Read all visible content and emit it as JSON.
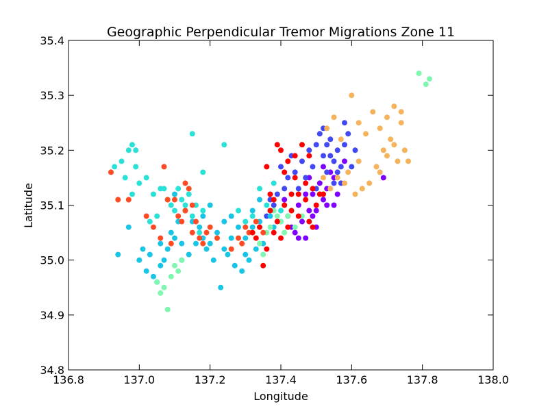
{
  "colors": {
    "purple": "#7f00ff",
    "blue": "#4248f4",
    "cyan": "#19c5e6",
    "teal": "#2ae1d8",
    "green": "#7ff7b0",
    "orange": "#f7b25c",
    "red_orange": "#fe4b23",
    "red": "#ff0000"
  },
  "chart_data": {
    "type": "scatter",
    "title": "Geographic Perpendicular Tremor Migrations Zone 11",
    "xlabel": "Longitude",
    "ylabel": "Latitude",
    "xlim": [
      136.8,
      138.0
    ],
    "ylim": [
      34.8,
      35.4
    ],
    "xticks": [
      "136.8",
      "137.0",
      "137.2",
      "137.4",
      "137.6",
      "137.8",
      "138.0"
    ],
    "yticks": [
      "34.8",
      "34.9",
      "35.0",
      "35.1",
      "35.2",
      "35.3",
      "35.4"
    ],
    "grid": false,
    "legend": "none",
    "series": [
      {
        "color": "purple",
        "points": [
          [
            137.45,
            35.1
          ],
          [
            137.47,
            35.12
          ],
          [
            137.49,
            35.08
          ],
          [
            137.5,
            35.06
          ],
          [
            137.52,
            35.11
          ],
          [
            137.53,
            35.13
          ],
          [
            137.55,
            35.15
          ],
          [
            137.48,
            35.09
          ],
          [
            137.46,
            35.07
          ],
          [
            137.44,
            35.05
          ],
          [
            137.42,
            35.08
          ],
          [
            137.51,
            35.14
          ],
          [
            137.54,
            35.16
          ],
          [
            137.56,
            35.12
          ],
          [
            137.58,
            35.18
          ],
          [
            137.43,
            35.06
          ],
          [
            137.47,
            35.04
          ],
          [
            137.49,
            35.12
          ],
          [
            137.52,
            35.17
          ],
          [
            137.69,
            35.15
          ],
          [
            137.5,
            35.09
          ],
          [
            137.45,
            35.04
          ],
          [
            137.53,
            35.1
          ],
          [
            137.41,
            35.11
          ],
          [
            137.48,
            35.15
          ],
          [
            137.55,
            35.1
          ]
        ]
      },
      {
        "color": "blue",
        "points": [
          [
            137.5,
            35.21
          ],
          [
            137.52,
            35.19
          ],
          [
            137.54,
            35.22
          ],
          [
            137.56,
            35.2
          ],
          [
            137.53,
            35.16
          ],
          [
            137.55,
            35.14
          ],
          [
            137.57,
            35.17
          ],
          [
            137.59,
            35.23
          ],
          [
            137.61,
            35.2
          ],
          [
            137.58,
            35.25
          ],
          [
            137.52,
            35.24
          ],
          [
            137.46,
            35.18
          ],
          [
            137.44,
            35.16
          ],
          [
            137.42,
            35.15
          ],
          [
            137.4,
            35.17
          ],
          [
            137.38,
            35.1
          ],
          [
            137.36,
            35.08
          ],
          [
            137.48,
            35.2
          ],
          [
            137.51,
            35.23
          ],
          [
            137.55,
            35.18
          ],
          [
            137.57,
            35.14
          ],
          [
            137.54,
            35.19
          ],
          [
            137.49,
            35.17
          ],
          [
            137.47,
            35.15
          ],
          [
            137.43,
            35.19
          ],
          [
            137.41,
            35.13
          ],
          [
            137.39,
            35.12
          ],
          [
            137.53,
            35.21
          ],
          [
            137.56,
            35.16
          ],
          [
            137.58,
            35.21
          ],
          [
            137.6,
            35.17
          ],
          [
            137.5,
            35.13
          ],
          [
            137.45,
            35.13
          ],
          [
            137.37,
            35.11
          ]
        ]
      },
      {
        "color": "cyan",
        "points": [
          [
            137.0,
            35.0
          ],
          [
            137.02,
            34.98
          ],
          [
            137.04,
            34.97
          ],
          [
            137.06,
            34.99
          ],
          [
            137.08,
            35.02
          ],
          [
            137.1,
            35.04
          ],
          [
            137.12,
            35.03
          ],
          [
            137.14,
            35.01
          ],
          [
            137.16,
            35.03
          ],
          [
            137.18,
            35.04
          ],
          [
            137.2,
            35.03
          ],
          [
            137.22,
            35.05
          ],
          [
            137.24,
            35.02
          ],
          [
            137.26,
            35.04
          ],
          [
            137.28,
            35.06
          ],
          [
            137.3,
            35.04
          ],
          [
            137.32,
            35.06
          ],
          [
            137.34,
            35.07
          ],
          [
            137.36,
            35.05
          ],
          [
            137.38,
            35.06
          ],
          [
            137.4,
            35.07
          ],
          [
            137.03,
            35.01
          ],
          [
            137.05,
            34.96
          ],
          [
            137.07,
            35.0
          ],
          [
            137.09,
            35.05
          ],
          [
            137.11,
            35.07
          ],
          [
            137.13,
            35.09
          ],
          [
            137.15,
            35.07
          ],
          [
            137.17,
            35.06
          ],
          [
            137.19,
            35.02
          ],
          [
            137.21,
            35.0
          ],
          [
            137.23,
            34.95
          ],
          [
            137.25,
            35.01
          ],
          [
            137.27,
            34.99
          ],
          [
            137.29,
            34.98
          ],
          [
            137.31,
            35.0
          ],
          [
            137.33,
            35.02
          ],
          [
            137.35,
            35.03
          ],
          [
            137.37,
            35.08
          ],
          [
            137.01,
            35.02
          ],
          [
            137.06,
            35.03
          ],
          [
            137.12,
            35.0
          ],
          [
            137.18,
            35.08
          ],
          [
            137.24,
            35.07
          ],
          [
            137.3,
            35.01
          ],
          [
            136.94,
            35.01
          ],
          [
            136.97,
            35.06
          ],
          [
            137.26,
            35.08
          ],
          [
            137.2,
            35.1
          ],
          [
            137.32,
            35.09
          ],
          [
            137.34,
            35.11
          ],
          [
            137.1,
            35.12
          ]
        ]
      },
      {
        "color": "teal",
        "points": [
          [
            136.93,
            35.17
          ],
          [
            136.95,
            35.18
          ],
          [
            136.97,
            35.2
          ],
          [
            136.98,
            35.21
          ],
          [
            136.99,
            35.2
          ],
          [
            136.96,
            35.15
          ],
          [
            136.98,
            35.12
          ],
          [
            137.0,
            35.14
          ],
          [
            137.02,
            35.15
          ],
          [
            137.04,
            35.12
          ],
          [
            137.06,
            35.13
          ],
          [
            137.08,
            35.11
          ],
          [
            137.1,
            35.09
          ],
          [
            137.12,
            35.11
          ],
          [
            137.14,
            35.12
          ],
          [
            137.16,
            35.1
          ],
          [
            137.18,
            35.09
          ],
          [
            137.15,
            35.23
          ],
          [
            137.18,
            35.16
          ],
          [
            137.24,
            35.21
          ],
          [
            137.28,
            35.09
          ],
          [
            137.3,
            35.07
          ],
          [
            137.32,
            35.08
          ],
          [
            137.34,
            35.13
          ],
          [
            137.36,
            35.1
          ],
          [
            137.38,
            35.14
          ],
          [
            137.4,
            35.09
          ],
          [
            137.03,
            35.07
          ],
          [
            137.05,
            35.08
          ],
          [
            137.07,
            35.13
          ],
          [
            137.09,
            35.1
          ],
          [
            137.11,
            35.13
          ],
          [
            137.13,
            35.1
          ],
          [
            137.15,
            35.08
          ],
          [
            137.17,
            35.05
          ],
          [
            136.99,
            35.17
          ]
        ]
      },
      {
        "color": "green",
        "points": [
          [
            137.79,
            35.34
          ],
          [
            137.81,
            35.32
          ],
          [
            137.82,
            35.33
          ],
          [
            137.05,
            34.96
          ],
          [
            137.06,
            34.94
          ],
          [
            137.07,
            34.95
          ],
          [
            137.08,
            34.91
          ],
          [
            137.09,
            34.97
          ],
          [
            137.1,
            34.99
          ],
          [
            137.11,
            34.98
          ],
          [
            137.12,
            35.0
          ],
          [
            137.4,
            35.07
          ],
          [
            137.42,
            35.08
          ],
          [
            137.44,
            35.06
          ],
          [
            137.38,
            35.09
          ],
          [
            137.36,
            35.05
          ],
          [
            137.34,
            35.03
          ],
          [
            137.46,
            35.08
          ],
          [
            137.41,
            35.05
          ],
          [
            137.39,
            35.08
          ],
          [
            137.43,
            35.09
          ],
          [
            137.37,
            35.06
          ],
          [
            137.35,
            35.01
          ]
        ]
      },
      {
        "color": "orange",
        "points": [
          [
            137.6,
            35.3
          ],
          [
            137.62,
            35.25
          ],
          [
            137.64,
            35.23
          ],
          [
            137.66,
            35.27
          ],
          [
            137.68,
            35.24
          ],
          [
            137.7,
            35.26
          ],
          [
            137.72,
            35.28
          ],
          [
            137.74,
            35.25
          ],
          [
            137.71,
            35.22
          ],
          [
            137.69,
            35.2
          ],
          [
            137.73,
            35.18
          ],
          [
            137.75,
            35.2
          ],
          [
            137.76,
            35.18
          ],
          [
            137.67,
            35.17
          ],
          [
            137.65,
            35.14
          ],
          [
            137.63,
            35.13
          ],
          [
            137.61,
            35.12
          ],
          [
            137.59,
            35.16
          ],
          [
            137.57,
            35.22
          ],
          [
            137.55,
            35.26
          ],
          [
            137.53,
            35.24
          ],
          [
            137.56,
            35.15
          ],
          [
            137.58,
            35.14
          ],
          [
            137.54,
            35.13
          ],
          [
            137.52,
            35.15
          ],
          [
            137.62,
            35.18
          ],
          [
            137.68,
            35.16
          ],
          [
            137.7,
            35.19
          ],
          [
            137.72,
            35.21
          ],
          [
            137.74,
            35.27
          ]
        ]
      },
      {
        "color": "red_orange",
        "points": [
          [
            136.92,
            35.16
          ],
          [
            136.94,
            35.11
          ],
          [
            136.97,
            35.11
          ],
          [
            137.02,
            35.08
          ],
          [
            137.04,
            35.06
          ],
          [
            137.07,
            35.17
          ],
          [
            137.08,
            35.11
          ],
          [
            137.1,
            35.11
          ],
          [
            137.11,
            35.08
          ],
          [
            137.12,
            35.07
          ],
          [
            137.13,
            35.14
          ],
          [
            137.14,
            35.13
          ],
          [
            137.15,
            35.1
          ],
          [
            137.16,
            35.07
          ],
          [
            137.17,
            35.04
          ],
          [
            137.18,
            35.03
          ],
          [
            137.19,
            35.05
          ],
          [
            137.2,
            35.06
          ],
          [
            137.26,
            35.02
          ],
          [
            137.28,
            35.04
          ],
          [
            137.29,
            35.03
          ],
          [
            137.31,
            35.05
          ],
          [
            137.33,
            35.07
          ],
          [
            137.35,
            35.05
          ],
          [
            137.3,
            35.06
          ],
          [
            137.06,
            35.04
          ],
          [
            137.09,
            35.03
          ],
          [
            137.13,
            35.09
          ],
          [
            137.15,
            35.05
          ],
          [
            137.22,
            35.04
          ]
        ]
      },
      {
        "color": "red",
        "points": [
          [
            137.36,
            35.17
          ],
          [
            137.39,
            35.21
          ],
          [
            137.4,
            35.2
          ],
          [
            137.42,
            35.18
          ],
          [
            137.44,
            35.19
          ],
          [
            137.46,
            35.21
          ],
          [
            137.48,
            35.19
          ],
          [
            137.44,
            35.15
          ],
          [
            137.41,
            35.16
          ],
          [
            137.38,
            35.11
          ],
          [
            137.37,
            35.09
          ],
          [
            137.39,
            35.07
          ],
          [
            137.41,
            35.1
          ],
          [
            137.43,
            35.09
          ],
          [
            137.45,
            35.08
          ],
          [
            137.47,
            35.11
          ],
          [
            137.49,
            35.13
          ],
          [
            137.51,
            35.12
          ],
          [
            137.5,
            35.1
          ],
          [
            137.48,
            35.07
          ],
          [
            137.34,
            35.06
          ],
          [
            137.33,
            35.04
          ],
          [
            137.35,
            34.99
          ],
          [
            137.36,
            35.02
          ],
          [
            137.38,
            35.05
          ],
          [
            137.4,
            35.04
          ],
          [
            137.42,
            35.06
          ],
          [
            137.45,
            35.12
          ],
          [
            137.47,
            35.14
          ],
          [
            137.52,
            35.12
          ],
          [
            137.49,
            35.06
          ],
          [
            137.37,
            35.12
          ],
          [
            137.32,
            35.05
          ],
          [
            137.43,
            35.12
          ]
        ]
      }
    ]
  }
}
